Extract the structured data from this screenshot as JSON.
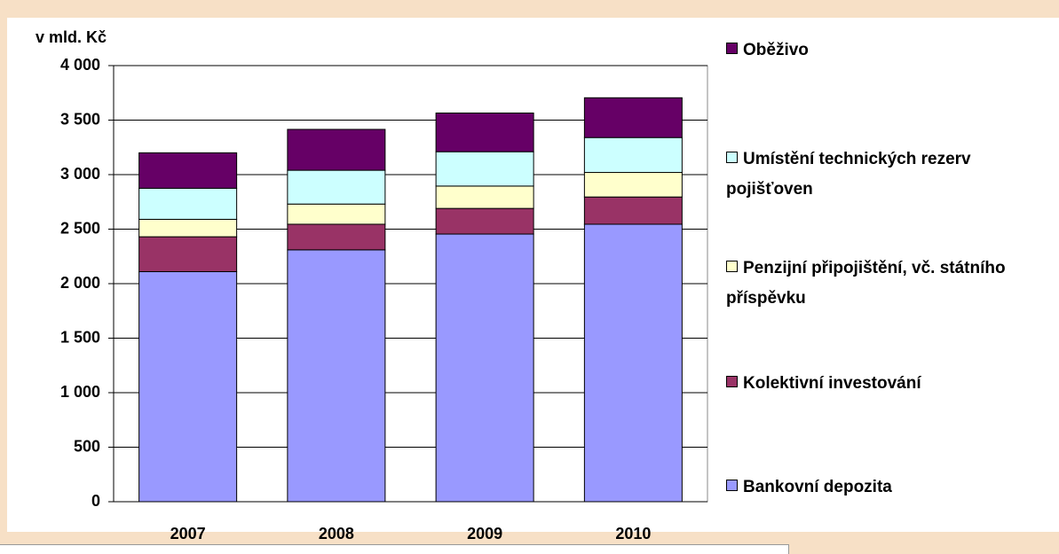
{
  "chart_data": {
    "type": "stacked_bar",
    "y_label": "v mld. Kč",
    "categories": [
      "2007",
      "2008",
      "2009",
      "2010"
    ],
    "series": [
      {
        "name": "Bankovní depozita",
        "color": "#9999ff",
        "values": [
          2110,
          2310,
          2455,
          2545
        ]
      },
      {
        "name": "Kolektivní investování",
        "color": "#993366",
        "values": [
          320,
          235,
          235,
          250
        ]
      },
      {
        "name": "Penzijní připojištění, vč. státního příspěvku",
        "color": "#ffffcc",
        "values": [
          160,
          185,
          205,
          225
        ]
      },
      {
        "name": "Umístění technických rezerv pojišťoven",
        "color": "#ccffff",
        "values": [
          285,
          310,
          315,
          320
        ]
      },
      {
        "name": "Oběživo",
        "color": "#660066",
        "values": [
          325,
          375,
          355,
          365
        ]
      }
    ],
    "ylim": [
      0,
      4000
    ],
    "yticks": [
      0,
      500,
      {
        "value": 1000,
        "label": "1 000"
      },
      {
        "value": 1500,
        "label": "1 500"
      },
      {
        "value": 2000,
        "label": "2 000"
      },
      {
        "value": 2500,
        "label": "2 500"
      },
      {
        "value": 3000,
        "label": "3 000"
      },
      {
        "value": 3500,
        "label": "3 500"
      },
      {
        "value": 4000,
        "label": "4 000"
      }
    ],
    "grid": true,
    "legend": "right"
  }
}
